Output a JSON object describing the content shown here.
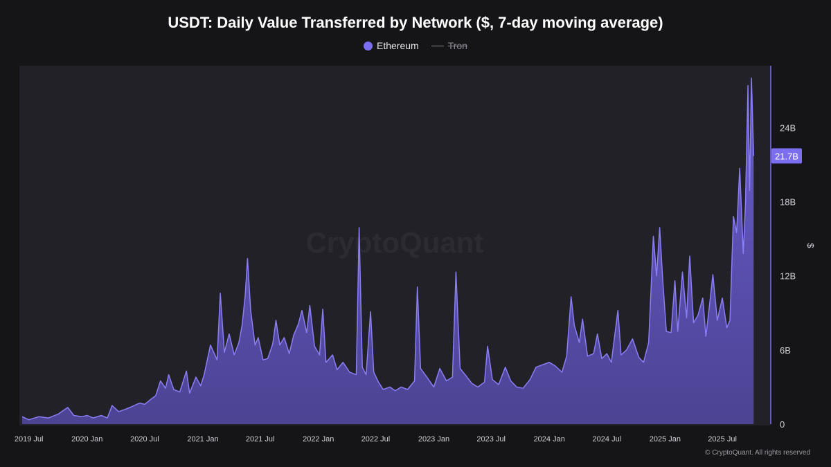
{
  "chart_data": {
    "type": "area",
    "title": "USDT: Daily Value Transferred by Network ($, 7-day moving average)",
    "ylabel": "$",
    "ylim": [
      0,
      29000000000
    ],
    "y_ticks": [
      {
        "value": 0,
        "label": "0"
      },
      {
        "value": 6000000000,
        "label": "6B"
      },
      {
        "value": 12000000000,
        "label": "12B"
      },
      {
        "value": 18000000000,
        "label": "18B"
      },
      {
        "value": 24000000000,
        "label": "24B"
      }
    ],
    "x_range": [
      "2019-06-01",
      "2025-12-01"
    ],
    "x_ticks": [
      {
        "date": "2019-07-01",
        "label": "2019 Jul"
      },
      {
        "date": "2020-01-01",
        "label": "2020 Jan"
      },
      {
        "date": "2020-07-01",
        "label": "2020 Jul"
      },
      {
        "date": "2021-01-01",
        "label": "2021 Jan"
      },
      {
        "date": "2021-07-01",
        "label": "2021 Jul"
      },
      {
        "date": "2022-01-01",
        "label": "2022 Jan"
      },
      {
        "date": "2022-07-01",
        "label": "2022 Jul"
      },
      {
        "date": "2023-01-01",
        "label": "2023 Jan"
      },
      {
        "date": "2023-07-01",
        "label": "2023 Jul"
      },
      {
        "date": "2024-01-01",
        "label": "2024 Jan"
      },
      {
        "date": "2024-07-01",
        "label": "2024 Jul"
      },
      {
        "date": "2025-01-01",
        "label": "2025 Jan"
      },
      {
        "date": "2025-07-01",
        "label": "2025 Jul"
      }
    ],
    "last_value_label": "21.7B",
    "last_value": 21700000000,
    "legend_position": "top-center",
    "grid": false,
    "watermark": "CryptoQuant",
    "series": [
      {
        "name": "Ethereum",
        "visible": true,
        "color": "#7b6ff0",
        "points": [
          [
            "2019-06-10",
            0.6
          ],
          [
            "2019-07-01",
            0.35
          ],
          [
            "2019-08-01",
            0.6
          ],
          [
            "2019-09-01",
            0.5
          ],
          [
            "2019-10-01",
            0.8
          ],
          [
            "2019-11-01",
            1.35
          ],
          [
            "2019-11-20",
            0.7
          ],
          [
            "2019-12-15",
            0.6
          ],
          [
            "2020-01-01",
            0.7
          ],
          [
            "2020-01-20",
            0.5
          ],
          [
            "2020-02-15",
            0.7
          ],
          [
            "2020-03-05",
            0.5
          ],
          [
            "2020-03-20",
            1.5
          ],
          [
            "2020-04-10",
            1.0
          ],
          [
            "2020-05-01",
            1.2
          ],
          [
            "2020-05-20",
            1.4
          ],
          [
            "2020-06-15",
            1.7
          ],
          [
            "2020-07-01",
            1.6
          ],
          [
            "2020-07-20",
            2.0
          ],
          [
            "2020-08-05",
            2.3
          ],
          [
            "2020-08-20",
            3.5
          ],
          [
            "2020-09-05",
            2.9
          ],
          [
            "2020-09-15",
            4.0
          ],
          [
            "2020-10-01",
            2.8
          ],
          [
            "2020-10-20",
            2.6
          ],
          [
            "2020-11-10",
            4.3
          ],
          [
            "2020-11-20",
            2.5
          ],
          [
            "2020-12-10",
            3.8
          ],
          [
            "2020-12-25",
            3.1
          ],
          [
            "2021-01-05",
            4.0
          ],
          [
            "2021-01-25",
            6.4
          ],
          [
            "2021-02-15",
            5.2
          ],
          [
            "2021-02-25",
            10.6
          ],
          [
            "2021-03-10",
            5.8
          ],
          [
            "2021-03-25",
            7.3
          ],
          [
            "2021-04-10",
            5.6
          ],
          [
            "2021-04-25",
            6.6
          ],
          [
            "2021-05-05",
            8.0
          ],
          [
            "2021-05-15",
            10.5
          ],
          [
            "2021-05-22",
            13.4
          ],
          [
            "2021-06-01",
            9.2
          ],
          [
            "2021-06-15",
            6.4
          ],
          [
            "2021-06-25",
            7.0
          ],
          [
            "2021-07-10",
            5.2
          ],
          [
            "2021-07-25",
            5.3
          ],
          [
            "2021-08-10",
            6.5
          ],
          [
            "2021-08-20",
            8.4
          ],
          [
            "2021-09-01",
            6.4
          ],
          [
            "2021-09-15",
            7.0
          ],
          [
            "2021-10-01",
            5.7
          ],
          [
            "2021-10-15",
            7.2
          ],
          [
            "2021-10-30",
            8.1
          ],
          [
            "2021-11-10",
            9.2
          ],
          [
            "2021-11-25",
            7.4
          ],
          [
            "2021-12-05",
            9.6
          ],
          [
            "2021-12-20",
            6.3
          ],
          [
            "2022-01-05",
            5.6
          ],
          [
            "2022-01-15",
            9.3
          ],
          [
            "2022-01-25",
            5.0
          ],
          [
            "2022-02-15",
            5.6
          ],
          [
            "2022-03-01",
            4.4
          ],
          [
            "2022-03-20",
            5.0
          ],
          [
            "2022-04-10",
            4.2
          ],
          [
            "2022-05-01",
            4.0
          ],
          [
            "2022-05-10",
            15.9
          ],
          [
            "2022-05-20",
            4.6
          ],
          [
            "2022-06-01",
            4.0
          ],
          [
            "2022-06-15",
            9.1
          ],
          [
            "2022-06-25",
            4.2
          ],
          [
            "2022-07-10",
            3.4
          ],
          [
            "2022-07-25",
            2.8
          ],
          [
            "2022-08-15",
            3.0
          ],
          [
            "2022-09-01",
            2.7
          ],
          [
            "2022-09-20",
            3.0
          ],
          [
            "2022-10-10",
            2.8
          ],
          [
            "2022-11-01",
            3.5
          ],
          [
            "2022-11-10",
            11.1
          ],
          [
            "2022-11-20",
            4.5
          ],
          [
            "2022-12-10",
            3.8
          ],
          [
            "2023-01-01",
            3.0
          ],
          [
            "2023-01-20",
            4.5
          ],
          [
            "2023-02-10",
            3.5
          ],
          [
            "2023-03-01",
            3.8
          ],
          [
            "2023-03-12",
            12.3
          ],
          [
            "2023-03-25",
            4.5
          ],
          [
            "2023-04-10",
            4.0
          ],
          [
            "2023-05-01",
            3.3
          ],
          [
            "2023-05-20",
            3.0
          ],
          [
            "2023-06-10",
            3.4
          ],
          [
            "2023-06-20",
            6.3
          ],
          [
            "2023-07-05",
            3.6
          ],
          [
            "2023-07-25",
            3.2
          ],
          [
            "2023-08-15",
            4.6
          ],
          [
            "2023-09-01",
            3.5
          ],
          [
            "2023-09-20",
            3.0
          ],
          [
            "2023-10-10",
            2.9
          ],
          [
            "2023-11-01",
            3.6
          ],
          [
            "2023-11-20",
            4.6
          ],
          [
            "2023-12-10",
            4.8
          ],
          [
            "2024-01-01",
            5.0
          ],
          [
            "2024-01-20",
            4.7
          ],
          [
            "2024-02-10",
            4.2
          ],
          [
            "2024-02-25",
            5.5
          ],
          [
            "2024-03-10",
            10.3
          ],
          [
            "2024-03-20",
            8.0
          ],
          [
            "2024-04-05",
            6.6
          ],
          [
            "2024-04-15",
            8.5
          ],
          [
            "2024-05-01",
            5.5
          ],
          [
            "2024-05-20",
            5.7
          ],
          [
            "2024-06-01",
            7.3
          ],
          [
            "2024-06-15",
            5.3
          ],
          [
            "2024-07-01",
            5.7
          ],
          [
            "2024-07-15",
            5.0
          ],
          [
            "2024-08-05",
            9.2
          ],
          [
            "2024-08-15",
            5.6
          ],
          [
            "2024-09-01",
            6.0
          ],
          [
            "2024-09-20",
            6.9
          ],
          [
            "2024-10-10",
            5.4
          ],
          [
            "2024-10-25",
            5.0
          ],
          [
            "2024-11-10",
            6.6
          ],
          [
            "2024-11-25",
            15.2
          ],
          [
            "2024-12-05",
            12.0
          ],
          [
            "2024-12-15",
            15.9
          ],
          [
            "2024-12-25",
            11.5
          ],
          [
            "2025-01-05",
            7.5
          ],
          [
            "2025-01-20",
            7.4
          ],
          [
            "2025-02-01",
            11.6
          ],
          [
            "2025-02-10",
            7.5
          ],
          [
            "2025-02-25",
            12.3
          ],
          [
            "2025-03-10",
            8.6
          ],
          [
            "2025-03-20",
            13.6
          ],
          [
            "2025-04-01",
            8.2
          ],
          [
            "2025-04-15",
            8.8
          ],
          [
            "2025-04-30",
            10.2
          ],
          [
            "2025-05-10",
            7.1
          ],
          [
            "2025-05-20",
            9.3
          ],
          [
            "2025-06-01",
            12.1
          ],
          [
            "2025-06-15",
            8.4
          ],
          [
            "2025-07-01",
            10.2
          ],
          [
            "2025-07-15",
            7.8
          ],
          [
            "2025-07-25",
            8.4
          ],
          [
            "2025-08-05",
            16.8
          ],
          [
            "2025-08-15",
            15.5
          ],
          [
            "2025-08-25",
            20.7
          ],
          [
            "2025-09-05",
            13.8
          ],
          [
            "2025-09-12",
            17.8
          ],
          [
            "2025-09-20",
            27.4
          ],
          [
            "2025-09-25",
            18.9
          ],
          [
            "2025-10-01",
            28.0
          ],
          [
            "2025-10-08",
            21.7
          ]
        ]
      },
      {
        "name": "Tron",
        "visible": false,
        "color": "#8b8b93"
      }
    ],
    "value_unit_multiplier": 1000000000
  },
  "colors": {
    "background": "#151518",
    "plot_background": "#232128",
    "area_fill_top": "#6c5fd6",
    "area_fill_bottom": "#4f4599",
    "line": "#8a7ef5",
    "badge": "#7b6ff0",
    "axis_text": "#d0d0d6"
  },
  "copyright": "© CryptoQuant. All rights reserved"
}
